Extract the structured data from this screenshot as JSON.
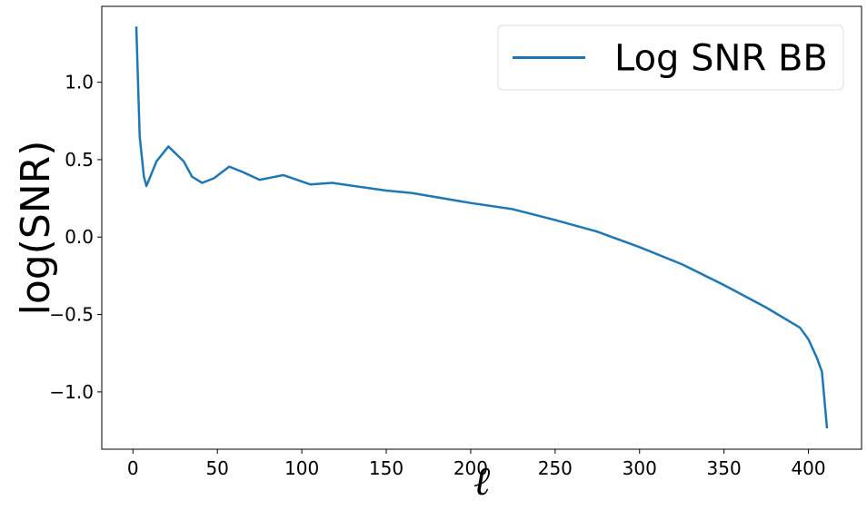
{
  "chart_data": {
    "type": "line",
    "x_label": "ℓ",
    "y_label": "log(SNR)",
    "x": [
      2,
      4,
      6.5,
      8,
      14,
      21,
      30,
      35,
      41,
      48,
      57,
      65,
      75,
      82,
      89,
      97,
      105,
      118,
      150,
      165,
      200,
      225,
      250,
      275,
      300,
      325,
      350,
      375,
      395,
      400,
      405,
      408,
      411
    ],
    "series": [
      {
        "name": "Log SNR BB",
        "color": "#1f77b4",
        "values": [
          1.36,
          0.65,
          0.39,
          0.33,
          0.49,
          0.585,
          0.49,
          0.39,
          0.35,
          0.38,
          0.455,
          0.42,
          0.37,
          0.385,
          0.4,
          0.37,
          0.34,
          0.35,
          0.3,
          0.285,
          0.22,
          0.18,
          0.11,
          0.035,
          -0.065,
          -0.175,
          -0.31,
          -0.455,
          -0.585,
          -0.66,
          -0.78,
          -0.87,
          -1.235
        ]
      }
    ],
    "xlim": [
      -18.45,
      431.45
    ],
    "xticks": [
      0,
      50,
      100,
      150,
      200,
      250,
      300,
      350,
      400
    ],
    "ylim": [
      -1.37,
      1.49
    ],
    "yticks": [
      {
        "value": -1.0,
        "label": "−1.0"
      },
      {
        "value": -0.5,
        "label": "−0.5"
      },
      {
        "value": 0.0,
        "label": "0.0"
      },
      {
        "value": 0.5,
        "label": "0.5"
      },
      {
        "value": 1.0,
        "label": "1.0"
      }
    ],
    "grid": false,
    "legend": "upper right"
  }
}
